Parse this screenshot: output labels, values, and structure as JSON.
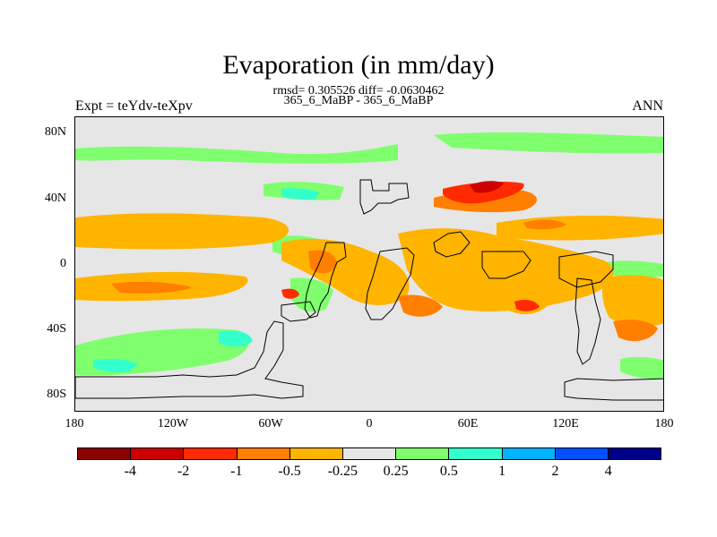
{
  "title": "Evaporation (in mm/day)",
  "subtitle_line1": "rmsd= 0.305526 diff= -0.0630462",
  "subtitle_line2": "365_6_MaBP - 365_6_MaBP",
  "left_label": "Expt = teYdv-teXpv",
  "right_label": "ANN",
  "map": {
    "y_ticks": [
      "80N",
      "40N",
      "0",
      "40S",
      "80S"
    ],
    "x_ticks": [
      "180",
      "120W",
      "60W",
      "0",
      "60E",
      "120E",
      "180"
    ],
    "lat_values": [
      80,
      40,
      0,
      -40,
      -80
    ],
    "lon_values": [
      -180,
      -120,
      -60,
      0,
      60,
      120,
      180
    ],
    "lat_range": [
      -90,
      90
    ],
    "lon_range": [
      -180,
      180
    ]
  },
  "colorbar": {
    "colors": [
      "#8c0000",
      "#cc0000",
      "#ff2a00",
      "#ff7f00",
      "#ffb400",
      "#e6e6e6",
      "#7fff6e",
      "#33ffcc",
      "#00b4ff",
      "#0050ff",
      "#00008c"
    ],
    "labels": [
      "-4",
      "-2",
      "-1",
      "-0.5",
      "-0.25",
      "0.25",
      "0.5",
      "1",
      "2",
      "4"
    ]
  }
}
